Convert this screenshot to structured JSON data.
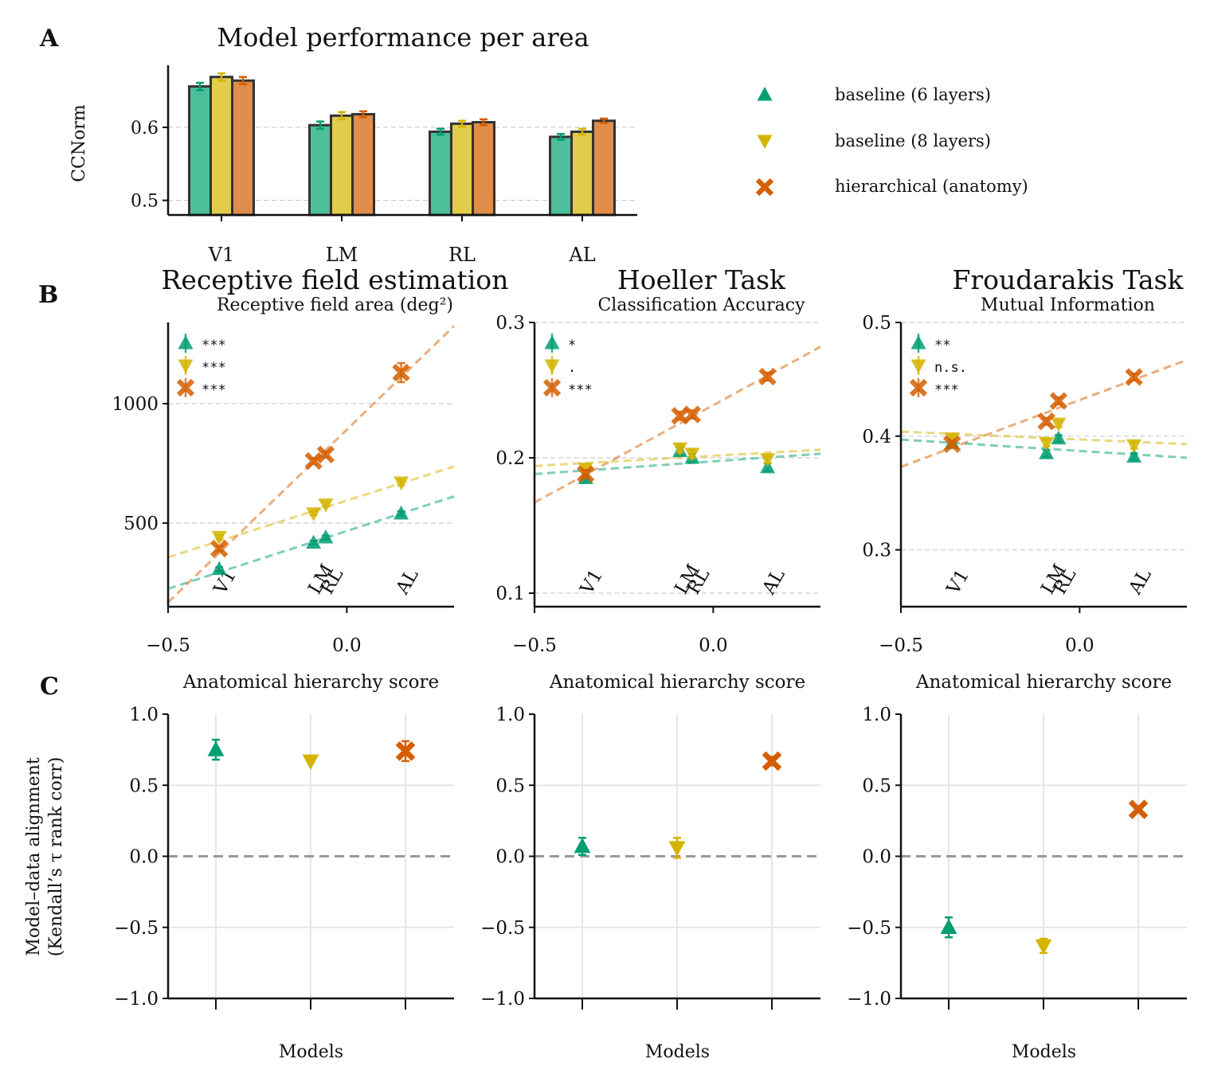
{
  "colors": {
    "baseline6": "#009e73",
    "baseline8": "#d4b400",
    "hier": "#d55e00",
    "bar6": "#4dbe9a",
    "bar8": "#e2cc4a",
    "barH": "#e08c4a",
    "grid": "#cccccc"
  },
  "figure": {
    "panel_labels": [
      "A",
      "B",
      "C"
    ],
    "legend": [
      {
        "key": "baseline6",
        "marker": "triangle-up",
        "label": "baseline (6 layers)"
      },
      {
        "key": "baseline8",
        "marker": "triangle-down",
        "label": "baseline (8 layers)"
      },
      {
        "key": "hier",
        "marker": "x",
        "label": "hierarchical (anatomy)"
      }
    ]
  },
  "chart_data": [
    {
      "id": "A",
      "type": "bar",
      "title": "Model performance per area",
      "ylabel": "CCNorm",
      "xlabel": "",
      "categories": [
        "V1",
        "LM",
        "RL",
        "AL"
      ],
      "ylim": [
        0.48,
        0.685
      ],
      "yticks": [
        0.5,
        0.6
      ],
      "ytick_labels": [
        "0.5",
        "0.6"
      ],
      "grid": "y dashed",
      "series": [
        {
          "name": "baseline (6 layers)",
          "key": "baseline6",
          "values": [
            0.656,
            0.603,
            0.594,
            0.587
          ],
          "errors": [
            0.005,
            0.005,
            0.004,
            0.004
          ]
        },
        {
          "name": "baseline (8 layers)",
          "key": "baseline8",
          "values": [
            0.669,
            0.616,
            0.605,
            0.594
          ],
          "errors": [
            0.005,
            0.005,
            0.004,
            0.004
          ]
        },
        {
          "name": "hierarchical (anatomy)",
          "key": "hier",
          "values": [
            0.664,
            0.618,
            0.607,
            0.609
          ],
          "errors": [
            0.005,
            0.004,
            0.004,
            0.003
          ]
        }
      ]
    },
    {
      "id": "B1",
      "type": "scatter",
      "title": "Receptive field estimation",
      "subtitle": "Receptive field area (deg²)",
      "xlabel": "Anatomical hierarchy score",
      "ylabel": "",
      "xlim": [
        -0.5,
        0.3
      ],
      "ylim": [
        150,
        1340
      ],
      "xticks": [
        -0.5,
        0.0
      ],
      "xtick_labels": [
        "−0.5",
        "0.0"
      ],
      "yticks": [
        500,
        1000
      ],
      "ytick_labels": [
        "500",
        "1000"
      ],
      "areas": [
        {
          "label": "V1",
          "x": -0.357
        },
        {
          "label": "LM",
          "x": -0.093
        },
        {
          "label": "RL",
          "x": -0.059
        },
        {
          "label": "AL",
          "x": 0.152
        }
      ],
      "series": [
        {
          "key": "baseline6",
          "significance": "***",
          "y": [
            308,
            418,
            440,
            540
          ],
          "err": [
            8,
            8,
            8,
            10
          ],
          "fit": {
            "x": [
              -0.5,
              0.3
            ],
            "y": [
              225,
              612
            ]
          }
        },
        {
          "key": "baseline8",
          "significance": "***",
          "y": [
            442,
            541,
            578,
            670
          ],
          "err": [
            8,
            8,
            8,
            12
          ],
          "fit": {
            "x": [
              -0.5,
              0.3
            ],
            "y": [
              357,
              737
            ]
          }
        },
        {
          "key": "hier",
          "significance": "***",
          "y": [
            393,
            760,
            787,
            1130
          ],
          "err": [
            10,
            12,
            12,
            40
          ],
          "fit": {
            "x": [
              -0.5,
              0.3
            ],
            "y": [
              168,
              1325
            ]
          }
        }
      ]
    },
    {
      "id": "B2",
      "type": "scatter",
      "title": "Hoeller Task",
      "subtitle": "Classification Accuracy",
      "xlabel": "Anatomical hierarchy score",
      "ylabel": "",
      "xlim": [
        -0.5,
        0.3
      ],
      "ylim": [
        0.09,
        0.3
      ],
      "xticks": [
        -0.5,
        0.0
      ],
      "xtick_labels": [
        "−0.5",
        "0.0"
      ],
      "yticks": [
        0.1,
        0.2,
        0.3
      ],
      "ytick_labels": [
        "0.1",
        "0.2",
        "0.3"
      ],
      "areas": [
        {
          "label": "V1",
          "x": -0.357
        },
        {
          "label": "LM",
          "x": -0.093
        },
        {
          "label": "RL",
          "x": -0.059
        },
        {
          "label": "AL",
          "x": 0.152
        }
      ],
      "series": [
        {
          "key": "baseline6",
          "significance": "*",
          "y": [
            0.185,
            0.205,
            0.2,
            0.193
          ],
          "err": [
            0.003,
            0.003,
            0.003,
            0.003
          ],
          "fit": {
            "x": [
              -0.5,
              0.3
            ],
            "y": [
              0.188,
              0.203
            ]
          }
        },
        {
          "key": "baseline8",
          "significance": ".",
          "y": [
            0.192,
            0.207,
            0.203,
            0.199
          ],
          "err": [
            0.003,
            0.003,
            0.003,
            0.003
          ],
          "fit": {
            "x": [
              -0.5,
              0.3
            ],
            "y": [
              0.194,
              0.206
            ]
          }
        },
        {
          "key": "hier",
          "significance": "***",
          "y": [
            0.188,
            0.231,
            0.232,
            0.26
          ],
          "err": [
            0.003,
            0.003,
            0.003,
            0.003
          ],
          "fit": {
            "x": [
              -0.5,
              0.3
            ],
            "y": [
              0.167,
              0.282
            ]
          }
        }
      ]
    },
    {
      "id": "B3",
      "type": "scatter",
      "title": "Froudarakis Task",
      "subtitle": "Mutual Information",
      "xlabel": "Anatomical hierarchy score",
      "ylabel": "",
      "xlim": [
        -0.5,
        0.3
      ],
      "ylim": [
        0.25,
        0.5
      ],
      "xticks": [
        -0.5,
        0.0
      ],
      "xtick_labels": [
        "−0.5",
        "0.0"
      ],
      "yticks": [
        0.3,
        0.4,
        0.5
      ],
      "ytick_labels": [
        "0.3",
        "0.4",
        "0.5"
      ],
      "areas": [
        {
          "label": "V1",
          "x": -0.357
        },
        {
          "label": "LM",
          "x": -0.093
        },
        {
          "label": "RL",
          "x": -0.059
        },
        {
          "label": "AL",
          "x": 0.152
        }
      ],
      "series": [
        {
          "key": "baseline6",
          "significance": "**",
          "y": [
            0.394,
            0.385,
            0.398,
            0.382
          ],
          "err": [
            0.003,
            0.003,
            0.003,
            0.003
          ],
          "fit": {
            "x": [
              -0.5,
              0.3
            ],
            "y": [
              0.397,
              0.381
            ]
          }
        },
        {
          "key": "baseline8",
          "significance": "n.s.",
          "y": [
            0.398,
            0.394,
            0.411,
            0.392
          ],
          "err": [
            0.003,
            0.003,
            0.003,
            0.003
          ],
          "fit": {
            "x": [
              -0.5,
              0.3
            ],
            "y": [
              0.404,
              0.393
            ]
          }
        },
        {
          "key": "hier",
          "significance": "***",
          "y": [
            0.393,
            0.413,
            0.431,
            0.452
          ],
          "err": [
            0.003,
            0.003,
            0.003,
            0.003
          ],
          "fit": {
            "x": [
              -0.5,
              0.3
            ],
            "y": [
              0.373,
              0.467
            ]
          }
        }
      ]
    },
    {
      "id": "C1",
      "type": "scatter",
      "xlabel": "Models",
      "ylabel": "Model–data alignment (Kendall’s τ rank corr)",
      "ylim": [
        -1.0,
        1.0
      ],
      "yticks": [
        -1.0,
        -0.5,
        0.0,
        0.5,
        1.0
      ],
      "ytick_labels": [
        "−1.0",
        "−0.5",
        "0.0",
        "0.5",
        "1.0"
      ],
      "series": [
        {
          "key": "baseline6",
          "value": 0.75,
          "err": 0.07
        },
        {
          "key": "baseline8",
          "value": 0.67,
          "err": 0.0
        },
        {
          "key": "hier",
          "value": 0.74,
          "err": 0.07
        }
      ]
    },
    {
      "id": "C2",
      "type": "scatter",
      "xlabel": "Models",
      "ylabel": "",
      "ylim": [
        -1.0,
        1.0
      ],
      "yticks": [
        -1.0,
        -0.5,
        0.0,
        0.5,
        1.0
      ],
      "ytick_labels": [
        "−1.0",
        "−0.5",
        "0.0",
        "0.5",
        "1.0"
      ],
      "series": [
        {
          "key": "baseline6",
          "value": 0.07,
          "err": 0.06
        },
        {
          "key": "baseline8",
          "value": 0.06,
          "err": 0.07
        },
        {
          "key": "hier",
          "value": 0.67,
          "err": 0.03
        }
      ]
    },
    {
      "id": "C3",
      "type": "scatter",
      "xlabel": "Models",
      "ylabel": "",
      "ylim": [
        -1.0,
        1.0
      ],
      "yticks": [
        -1.0,
        -0.5,
        0.0,
        0.5,
        1.0
      ],
      "ytick_labels": [
        "−1.0",
        "−0.5",
        "0.0",
        "0.5",
        "1.0"
      ],
      "series": [
        {
          "key": "baseline6",
          "value": -0.5,
          "err": 0.07
        },
        {
          "key": "baseline8",
          "value": -0.63,
          "err": 0.05
        },
        {
          "key": "hier",
          "value": 0.33,
          "err": 0.02
        }
      ]
    }
  ]
}
